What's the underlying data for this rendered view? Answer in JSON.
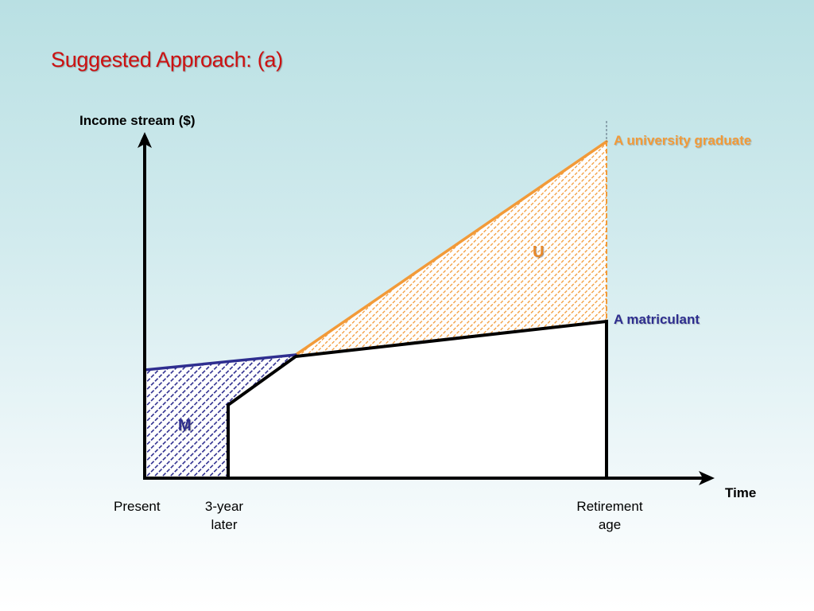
{
  "slide": {
    "title": "Suggested Approach: (a)"
  },
  "diagram": {
    "y_axis_label": "Income stream ($)",
    "x_axis_label": "Time",
    "x_ticks": {
      "present": "Present",
      "three_year": "3-year\nlater",
      "retirement": "Retirement\nage"
    },
    "series": {
      "graduate": {
        "label": "A university graduate",
        "color": "#f29a38"
      },
      "matriculant": {
        "label": "A matriculant",
        "color": "#2e2e8f"
      }
    },
    "regions": {
      "u": {
        "label": "U",
        "color": "#e8892b"
      },
      "m": {
        "label": "M",
        "color": "#2e2e8f"
      }
    }
  }
}
